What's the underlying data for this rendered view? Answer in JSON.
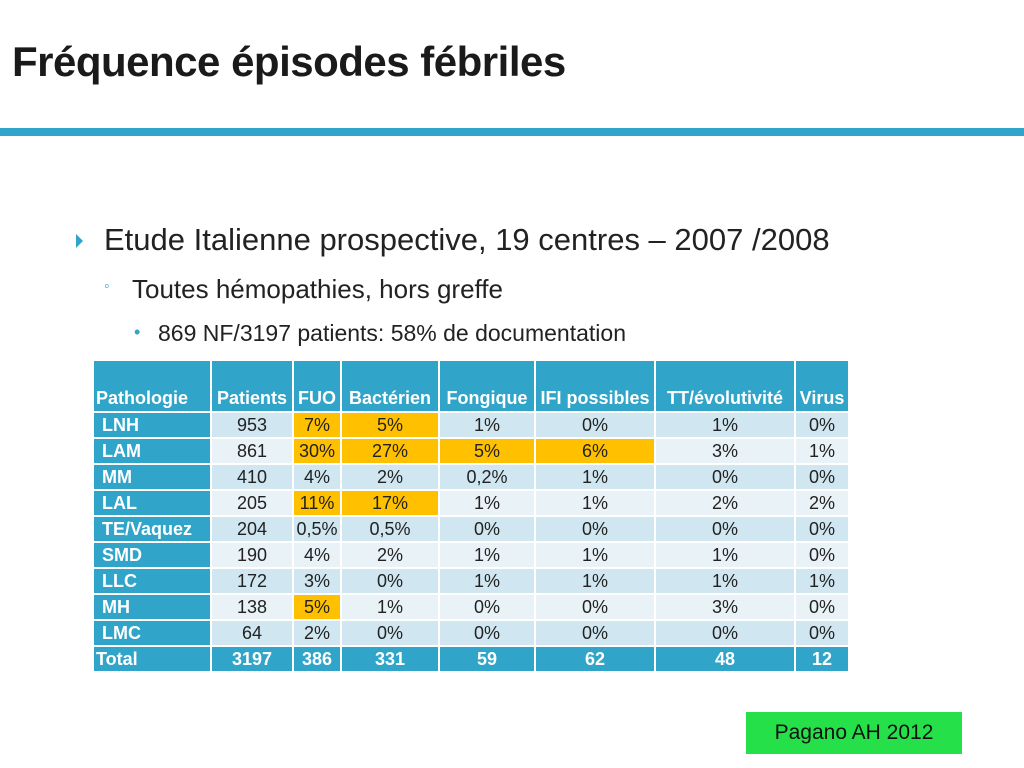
{
  "slide": {
    "title": "Fréquence épisodes fébriles",
    "accent_color": "#31a4c9"
  },
  "bullets": {
    "level1": "Etude Italienne prospective, 19 centres – 2007 /2008",
    "level2": "Toutes hémopathies, hors greffe",
    "level3": "869 NF/3197 patients: 58% de documentation"
  },
  "table": {
    "headers": [
      "Pathologie",
      "Patients",
      "FUO",
      "Bactérien",
      "Fongique",
      "IFI possibles",
      "TT/évolutivité",
      "Virus"
    ],
    "highlight_color": "#ffc000",
    "rows": [
      {
        "pathologie": "LNH",
        "patients": "953",
        "fuo": "7%",
        "bacterien": "5%",
        "fongique": "1%",
        "ifi": "0%",
        "tt": "1%",
        "virus": "0%"
      },
      {
        "pathologie": "LAM",
        "patients": "861",
        "fuo": "30%",
        "bacterien": "27%",
        "fongique": "5%",
        "ifi": "6%",
        "tt": "3%",
        "virus": "1%"
      },
      {
        "pathologie": "MM",
        "patients": "410",
        "fuo": "4%",
        "bacterien": "2%",
        "fongique": "0,2%",
        "ifi": "1%",
        "tt": "0%",
        "virus": "0%"
      },
      {
        "pathologie": "LAL",
        "patients": "205",
        "fuo": "11%",
        "bacterien": "17%",
        "fongique": "1%",
        "ifi": "1%",
        "tt": "2%",
        "virus": "2%"
      },
      {
        "pathologie": "TE/Vaquez",
        "patients": "204",
        "fuo": "0,5%",
        "bacterien": "0,5%",
        "fongique": "0%",
        "ifi": "0%",
        "tt": "0%",
        "virus": "0%"
      },
      {
        "pathologie": "SMD",
        "patients": "190",
        "fuo": "4%",
        "bacterien": "2%",
        "fongique": "1%",
        "ifi": "1%",
        "tt": "1%",
        "virus": "0%"
      },
      {
        "pathologie": "LLC",
        "patients": "172",
        "fuo": "3%",
        "bacterien": "0%",
        "fongique": "1%",
        "ifi": "1%",
        "tt": "1%",
        "virus": "1%"
      },
      {
        "pathologie": "MH",
        "patients": "138",
        "fuo": "5%",
        "bacterien": "1%",
        "fongique": "0%",
        "ifi": "0%",
        "tt": "3%",
        "virus": "0%"
      },
      {
        "pathologie": "LMC",
        "patients": "64",
        "fuo": "2%",
        "bacterien": "0%",
        "fongique": "0%",
        "ifi": "0%",
        "tt": "0%",
        "virus": "0%"
      }
    ],
    "total": {
      "pathologie": "Total",
      "patients": "3197",
      "fuo": "386",
      "bacterien": "331",
      "fongique": "59",
      "ifi": "62",
      "tt": "48",
      "virus": "12"
    }
  },
  "citation": {
    "text": "Pagano AH 2012",
    "background_color": "#26e04a"
  }
}
